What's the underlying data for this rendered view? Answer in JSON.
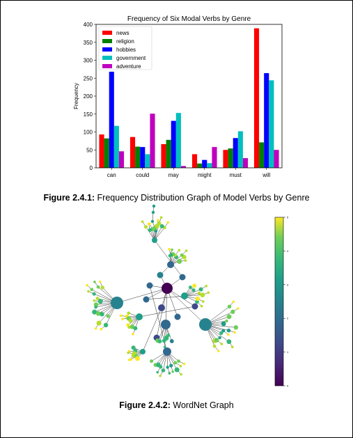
{
  "figure1": {
    "caption_label": "Figure 2.4.1:",
    "caption_text": " Frequency Distribution Graph of Model Verbs by Genre"
  },
  "figure2": {
    "caption_label": "Figure 2.4.2:",
    "caption_text": " WordNet Graph",
    "colorbar": {
      "colormap": "viridis",
      "ticks": [
        "0",
        "1",
        "2",
        "3",
        "4",
        "5"
      ]
    }
  },
  "chart_data": [
    {
      "type": "bar",
      "title": "Frequency of Six Modal Verbs by Genre",
      "xlabel": "",
      "ylabel": "Frequency",
      "categories": [
        "can",
        "could",
        "may",
        "might",
        "must",
        "will"
      ],
      "ylim": [
        0,
        400
      ],
      "yticks": [
        "0",
        "50",
        "100",
        "150",
        "200",
        "250",
        "300",
        "350",
        "400"
      ],
      "legend_position": "top-left",
      "grid": false,
      "series": [
        {
          "name": "news",
          "color": "#ff0000",
          "values": [
            93,
            86,
            66,
            38,
            50,
            389
          ]
        },
        {
          "name": "religion",
          "color": "#008000",
          "values": [
            82,
            59,
            78,
            12,
            54,
            71
          ]
        },
        {
          "name": "hobbies",
          "color": "#0000ff",
          "values": [
            268,
            58,
            131,
            22,
            83,
            264
          ]
        },
        {
          "name": "government",
          "color": "#00bfbf",
          "values": [
            117,
            38,
            153,
            13,
            102,
            244
          ]
        },
        {
          "name": "adventure",
          "color": "#bf00bf",
          "values": [
            46,
            151,
            5,
            58,
            27,
            50
          ]
        }
      ]
    }
  ]
}
